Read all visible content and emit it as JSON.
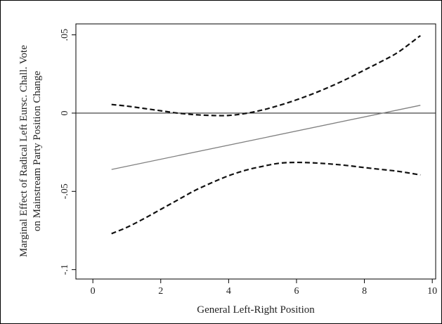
{
  "chart_data": {
    "type": "line",
    "title": "",
    "xlabel": "General Left-Right Position",
    "ylabel_lines": [
      "Marginal Effect of Radical Left Eursc. Chall. Vote",
      "on Mainstream Party Position Change"
    ],
    "xlim": [
      -0.5,
      10.1
    ],
    "ylim": [
      -0.106,
      0.057
    ],
    "x_ticks": [
      0,
      2,
      4,
      6,
      8,
      10
    ],
    "x_tick_labels": [
      "0",
      "2",
      "4",
      "6",
      "8",
      "10"
    ],
    "y_ticks": [
      0.05,
      0,
      -0.05,
      -0.1
    ],
    "y_tick_labels": [
      ".05",
      "0",
      "-.05",
      "-.1"
    ],
    "reference_line_y": 0,
    "grid": false,
    "legend": "none",
    "series": [
      {
        "role": "estimate",
        "style": "solid",
        "color": "#808080",
        "x": [
          0.55,
          9.65
        ],
        "y": [
          -0.036,
          0.005
        ]
      },
      {
        "role": "upper-ci",
        "style": "dashed",
        "color": "#111111",
        "x": [
          0.55,
          1.0,
          1.5,
          2.0,
          2.5,
          3.0,
          3.5,
          4.0,
          4.5,
          5.0,
          5.5,
          6.0,
          6.5,
          7.0,
          7.5,
          8.0,
          8.5,
          9.0,
          9.65
        ],
        "y": [
          0.0055,
          0.0045,
          0.003,
          0.0015,
          0.0,
          -0.001,
          -0.0015,
          -0.0015,
          -0.0002,
          0.002,
          0.005,
          0.0085,
          0.0125,
          0.017,
          0.022,
          0.0275,
          0.033,
          0.039,
          0.0495
        ]
      },
      {
        "role": "lower-ci",
        "style": "dashed",
        "color": "#111111",
        "x": [
          0.55,
          1.0,
          1.5,
          2.0,
          2.5,
          3.0,
          3.5,
          4.0,
          4.5,
          5.0,
          5.5,
          6.0,
          6.5,
          7.0,
          7.5,
          8.0,
          8.5,
          9.0,
          9.65
        ],
        "y": [
          -0.077,
          -0.073,
          -0.0675,
          -0.0615,
          -0.0555,
          -0.0495,
          -0.0445,
          -0.04,
          -0.0365,
          -0.034,
          -0.032,
          -0.0315,
          -0.0318,
          -0.0325,
          -0.0335,
          -0.0348,
          -0.036,
          -0.0372,
          -0.0395
        ]
      }
    ]
  }
}
